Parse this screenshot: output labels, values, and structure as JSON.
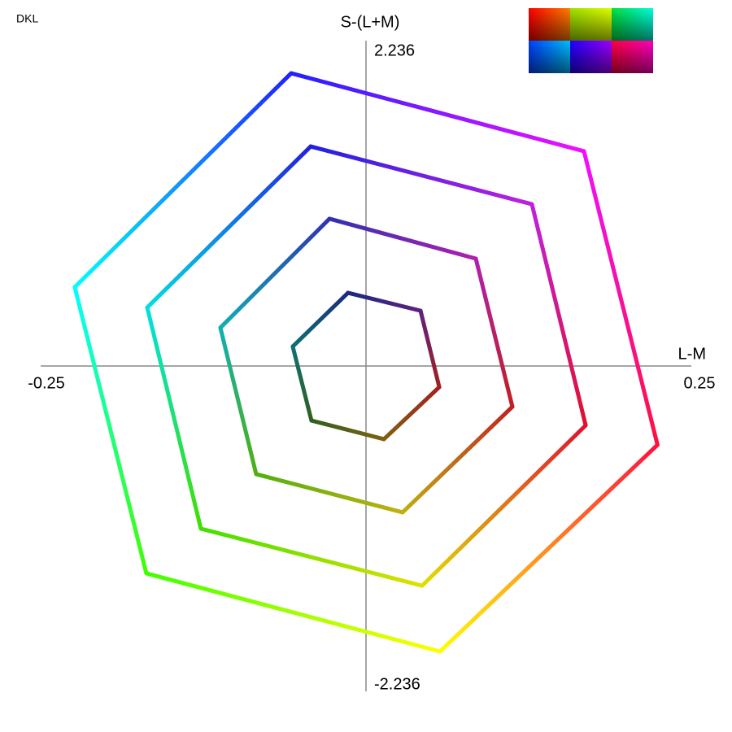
{
  "chart_data": {
    "type": "polygon",
    "title": "DKL",
    "xlabel": "L-M",
    "ylabel": "S-(L+M)",
    "xlim": [
      -0.25,
      0.25
    ],
    "ylim": [
      -2.236,
      2.236
    ],
    "xticks": [
      -0.25,
      0.25
    ],
    "yticks": [
      -2.236,
      2.236
    ],
    "series": [
      {
        "x": [
          -0.0138,
          0.0419,
          0.0563,
          0.0138,
          -0.0419,
          -0.0563
        ],
        "y": [
          0.503,
          0.38,
          -0.145,
          -0.503,
          -0.375,
          0.134
        ],
        "colors": [
          "#1a2a80",
          "#602080",
          "#a02020",
          "#806010",
          "#306020",
          "#107070"
        ]
      },
      {
        "x": [
          -0.0281,
          0.0844,
          0.1125,
          0.0281,
          -0.0844,
          -0.1119
        ],
        "y": [
          1.012,
          0.738,
          -0.28,
          -1.006,
          -0.743,
          0.263
        ],
        "colors": [
          "#3030b0",
          "#b020b0",
          "#c02020",
          "#c0b010",
          "#50b010",
          "#10b0b0"
        ]
      },
      {
        "x": [
          -0.0425,
          0.1275,
          0.1688,
          0.0431,
          -0.1269,
          -0.1681
        ],
        "y": [
          1.509,
          1.112,
          -0.408,
          -1.51,
          -1.118,
          0.402
        ],
        "colors": [
          "#2020e0",
          "#c020e0",
          "#e01030",
          "#e0e000",
          "#40e000",
          "#00e0e0"
        ]
      },
      {
        "x": [
          -0.0575,
          0.1675,
          0.224,
          0.0569,
          -0.1688,
          -0.2238
        ],
        "y": [
          2.012,
          1.476,
          -0.542,
          -1.962,
          -1.425,
          0.542
        ],
        "colors": [
          "#2020ff",
          "#f010ff",
          "#ff1040",
          "#ffff00",
          "#40ff00",
          "#00ffff"
        ]
      }
    ]
  }
}
